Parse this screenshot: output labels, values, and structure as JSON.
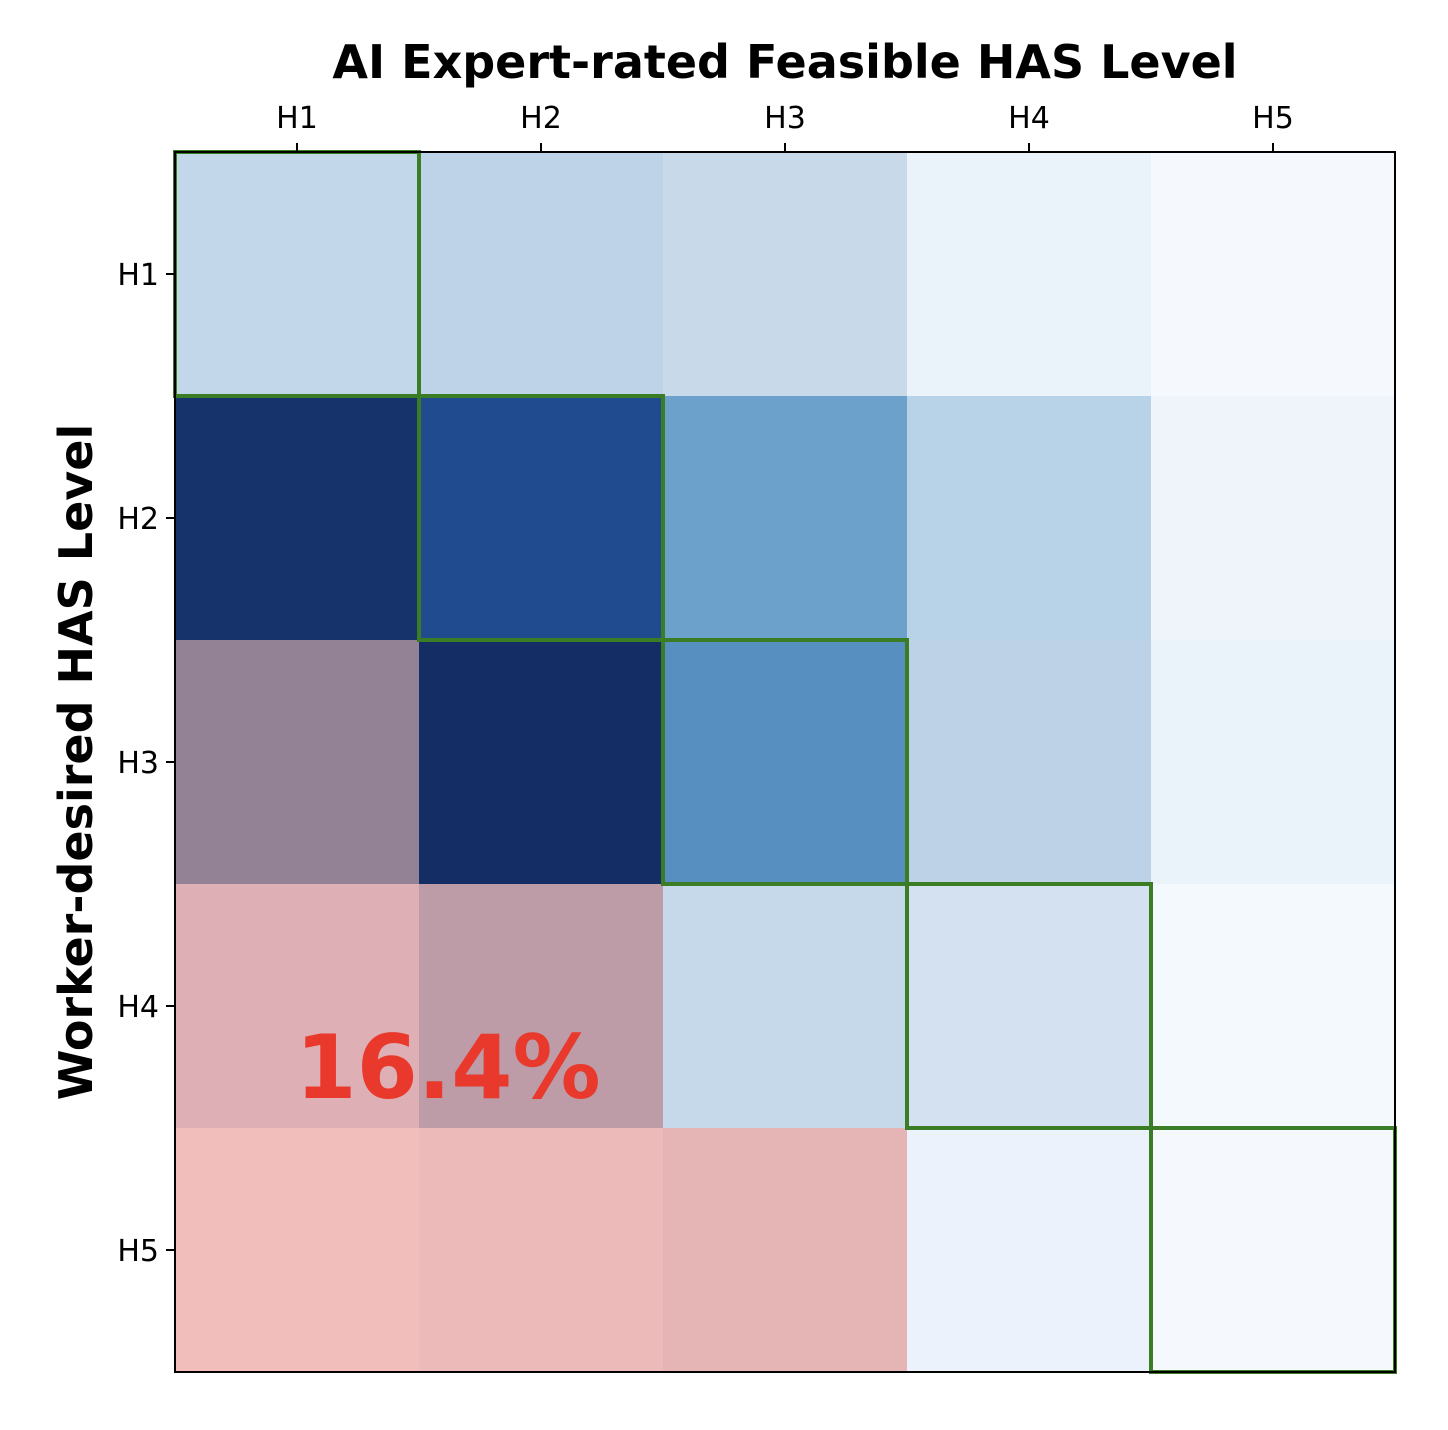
{
  "chart_data": {
    "type": "heatmap",
    "title": "AI Expert-rated Feasible HAS Level",
    "ylabel": "Worker-desired HAS Level",
    "x_categories": [
      "H1",
      "H2",
      "H3",
      "H4",
      "H5"
    ],
    "y_categories": [
      "H1",
      "H2",
      "H3",
      "H4",
      "H5"
    ],
    "x_axis_position": "top",
    "colormap": "Blues",
    "values": [
      [
        0.22,
        0.24,
        0.19,
        0.07,
        0.03
      ],
      [
        1.0,
        0.88,
        0.52,
        0.26,
        0.06
      ],
      [
        0.62,
        1.0,
        0.62,
        0.24,
        0.08
      ],
      [
        0.35,
        0.38,
        0.2,
        0.16,
        0.03
      ],
      [
        0.1,
        0.12,
        0.15,
        0.07,
        0.02
      ]
    ],
    "cell_colors": [
      [
        "#c3d7ea",
        "#bed3e7",
        "#c8d9ea",
        "#eaf2fa",
        "#f5f9fd"
      ],
      [
        "#17336b",
        "#214b8f",
        "#6ca1cb",
        "#b8d3e7",
        "#eef4fa"
      ],
      [
        "#938296",
        "#152d65",
        "#568fc0",
        "#bdd2e7",
        "#ebf3fa"
      ],
      [
        "#deb0b5",
        "#bd9ca7",
        "#c6d9eb",
        "#d4e1f0",
        "#f4f9fd"
      ],
      [
        "#f1bebb",
        "#ecbbb9",
        "#e5b5b6",
        "#ebf2fb",
        "#f5f9fe"
      ]
    ],
    "highlight_region": "cells below diagonal (worker-desired level above AI-feasible level)",
    "highlight_color": "#f08080",
    "diagonal_outline_color": "#3a7d25",
    "annotation": {
      "text": "16.4%",
      "color": "#e8392c"
    },
    "grid": false
  }
}
